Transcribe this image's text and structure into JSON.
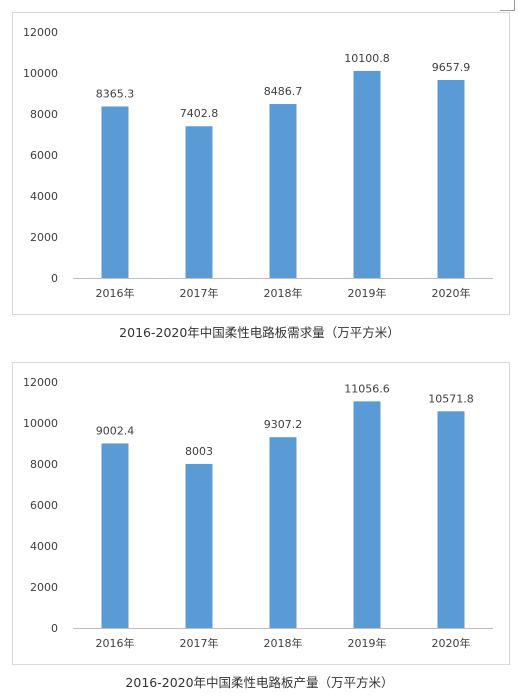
{
  "chart_data": [
    {
      "type": "bar",
      "categories": [
        "2016年",
        "2017年",
        "2018年",
        "2019年",
        "2020年"
      ],
      "values": [
        8365.3,
        7402.8,
        8486.7,
        10100.8,
        9657.9
      ],
      "data_labels": [
        "8365.3",
        "7402.8",
        "8486.7",
        "10100.8",
        "9657.9"
      ],
      "yticks": [
        "0",
        "2000",
        "4000",
        "6000",
        "8000",
        "10000",
        "12000"
      ],
      "ylim": [
        0,
        12000
      ],
      "title": "",
      "caption": "2016-2020年中国柔性电路板需求量（万平方米）",
      "bar_color": "#5b9bd5",
      "grid": false
    },
    {
      "type": "bar",
      "categories": [
        "2016年",
        "2017年",
        "2018年",
        "2019年",
        "2020年"
      ],
      "values": [
        9002.4,
        8003,
        9307.2,
        11056.6,
        10571.8
      ],
      "data_labels": [
        "9002.4",
        "8003",
        "9307.2",
        "11056.6",
        "10571.8"
      ],
      "yticks": [
        "0",
        "2000",
        "4000",
        "6000",
        "8000",
        "10000",
        "12000"
      ],
      "ylim": [
        0,
        12000
      ],
      "title": "",
      "caption": "2016-2020年中国柔性电路板产量（万平方米）",
      "bar_color": "#5b9bd5",
      "grid": false
    }
  ]
}
